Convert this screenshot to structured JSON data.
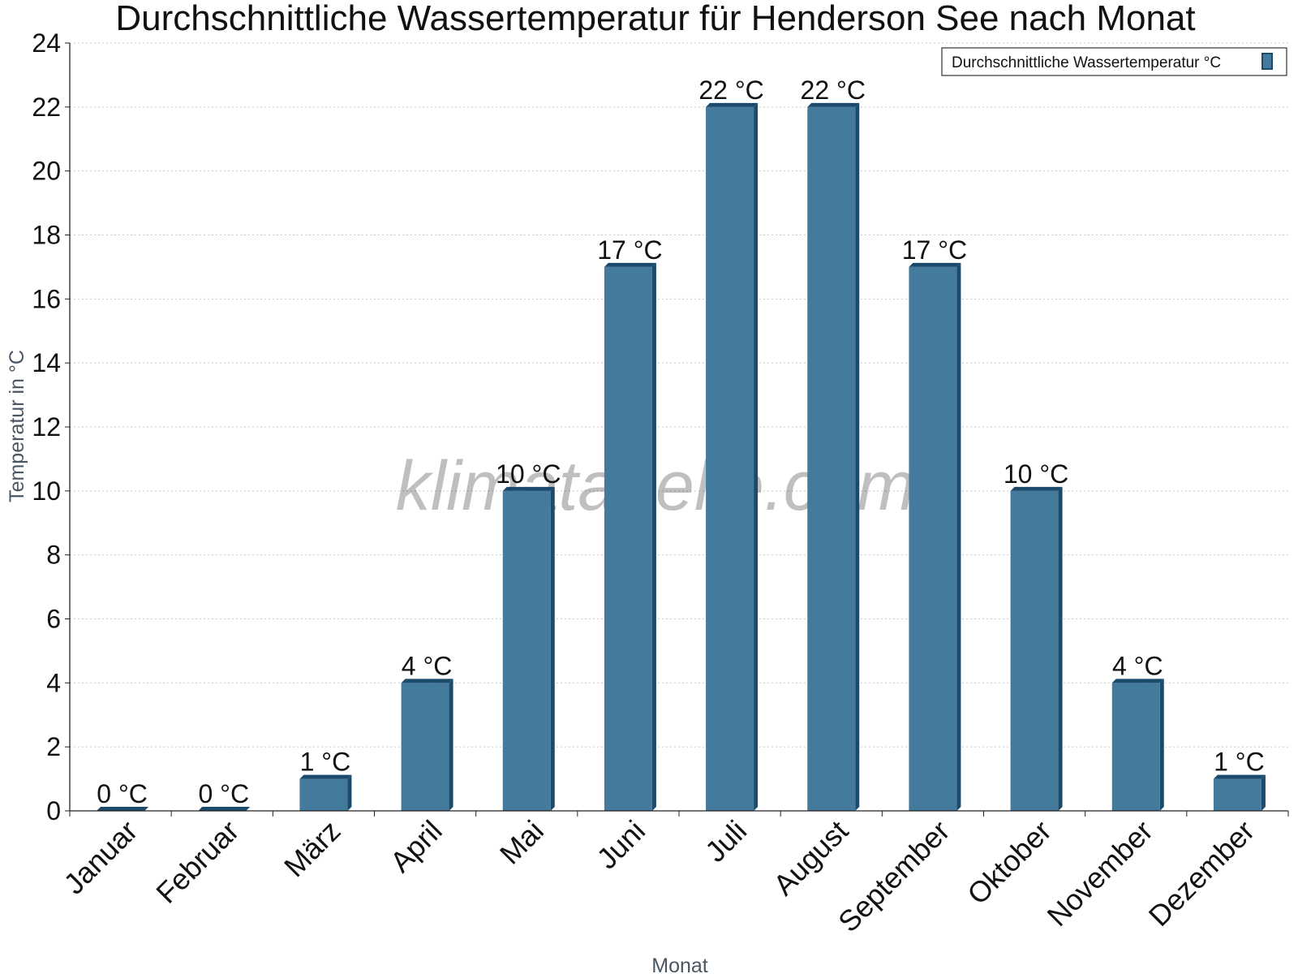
{
  "chart_data": {
    "type": "bar",
    "title": "Durchschnittliche Wassertemperatur für Henderson See nach Monat",
    "xlabel": "Monat",
    "ylabel": "Temperatur in °C",
    "categories": [
      "Januar",
      "Februar",
      "März",
      "April",
      "Mai",
      "Juni",
      "Juli",
      "August",
      "September",
      "Oktober",
      "November",
      "Dezember"
    ],
    "series": [
      {
        "name": "Durchschnittliche Wassertemperatur °C",
        "values": [
          0,
          0,
          1,
          4,
          10,
          17,
          22,
          22,
          17,
          10,
          4,
          1
        ],
        "labels": [
          "0 °C",
          "0 °C",
          "1 °C",
          "4 °C",
          "10 °C",
          "17 °C",
          "22 °C",
          "22 °C",
          "17 °C",
          "10 °C",
          "4 °C",
          "1 °C"
        ]
      }
    ],
    "ylim": [
      0,
      24
    ],
    "yticks": [
      0,
      2,
      4,
      6,
      8,
      10,
      12,
      14,
      16,
      18,
      20,
      22,
      24
    ],
    "grid": true,
    "legend_position": "top-right",
    "colors": {
      "bar": "#447a9c",
      "bar_side": "#1c4a6b",
      "grid": "#c8c8c8",
      "axis": "#222222"
    }
  },
  "watermark": "klimatabelle.com"
}
